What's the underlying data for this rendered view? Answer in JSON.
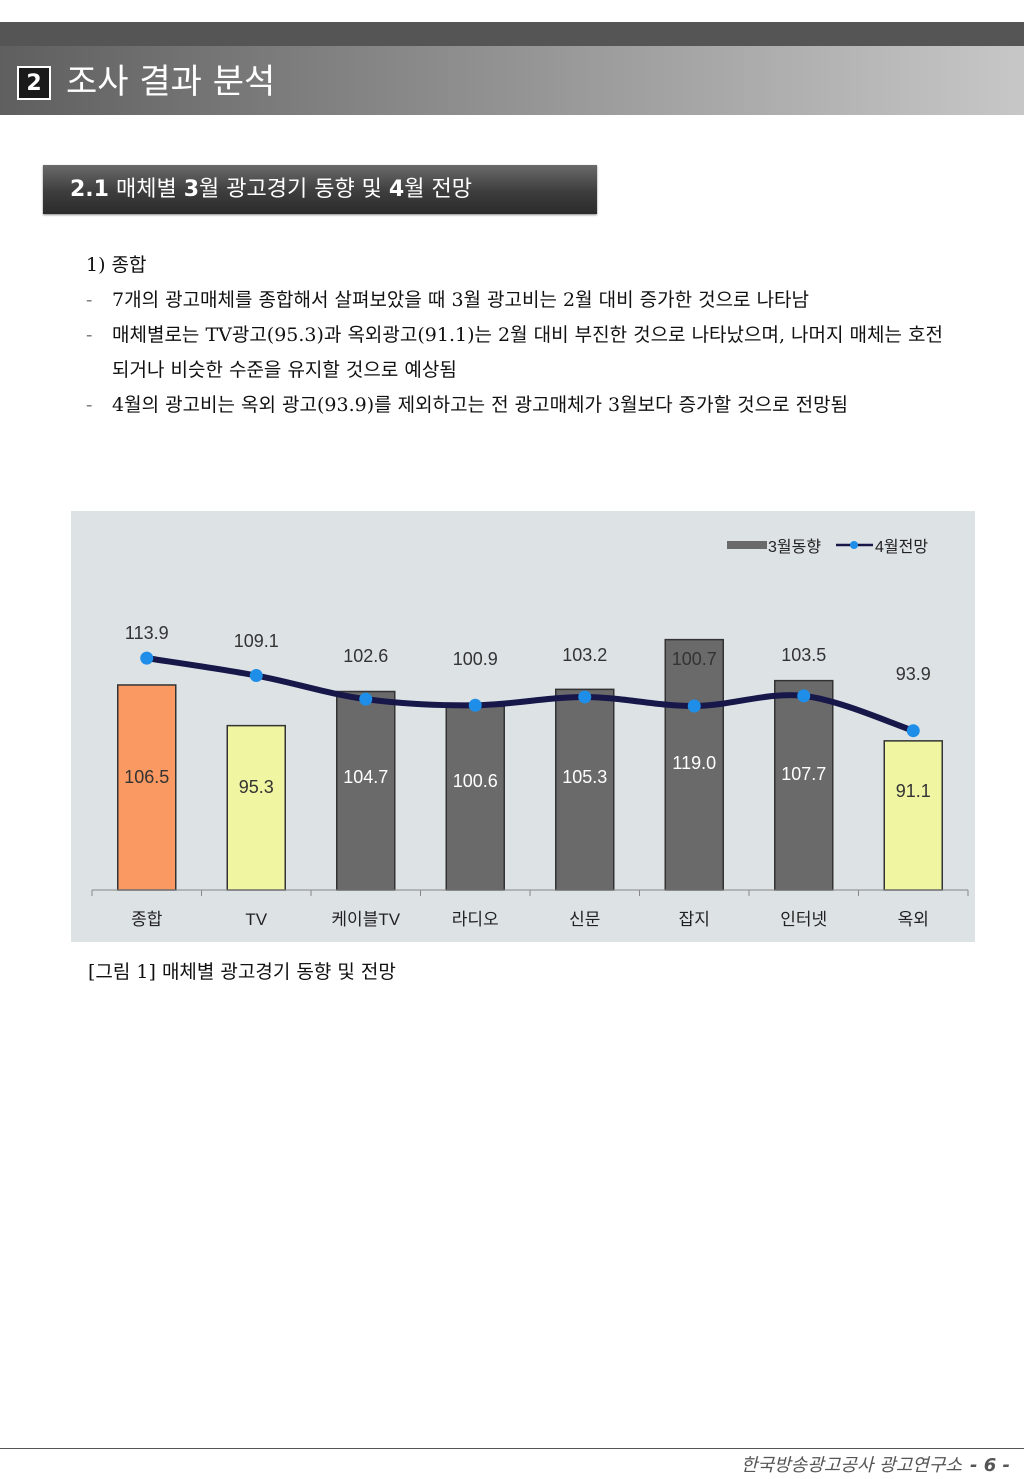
{
  "section": {
    "number": "2",
    "title": "조사 결과 분석"
  },
  "subsection": {
    "parts": [
      {
        "text": "2.1",
        "bold": true
      },
      {
        "text": " 매체별 ",
        "bold": false
      },
      {
        "text": "3",
        "bold": true
      },
      {
        "text": "월 광고경기 동향 및 ",
        "bold": false
      },
      {
        "text": "4",
        "bold": true
      },
      {
        "text": "월 전망",
        "bold": false
      }
    ]
  },
  "body": {
    "heading": "1) 종합",
    "bullet_marker": "-",
    "bullets": [
      "7개의 광고매체를 종합해서 살펴보았을 때 3월 광고비는 2월 대비 증가한 것으로 나타남",
      "매체별로는 TV광고(95.3)과 옥외광고(91.1)는 2월 대비 부진한 것으로 나타났으며, 나머지 매체는 호전되거나 비슷한 수준을 유지할 것으로 예상됨",
      "4월의 광고비는 옥외 광고(93.9)를 제외하고는 전 광고매체가 3월보다 증가할 것으로 전망됨"
    ]
  },
  "chart_data": {
    "type": "bar",
    "categories": [
      "종합",
      "TV",
      "케이블TV",
      "라디오",
      "신문",
      "잡지",
      "인터넷",
      "옥외"
    ],
    "series": [
      {
        "name": "3월동향",
        "type": "bar",
        "values": [
          106.5,
          95.3,
          104.7,
          100.6,
          105.3,
          119.0,
          107.7,
          91.1
        ]
      },
      {
        "name": "4월전망",
        "type": "line",
        "values": [
          113.9,
          109.1,
          102.6,
          100.9,
          103.2,
          100.7,
          103.5,
          93.9
        ]
      }
    ],
    "value_labels": {
      "bars": [
        "106.5",
        "95.3",
        "104.7",
        "100.6",
        "105.3",
        "119.0",
        "107.7",
        "91.1"
      ],
      "line": [
        "113.9",
        "109.1",
        "102.6",
        "100.9",
        "103.2",
        "100.7",
        "103.5",
        "93.9"
      ]
    },
    "legend_position": "top-right",
    "bar_colors": [
      "#fa9a62",
      "#f0f5a2",
      "#6a6a6a",
      "#6a6a6a",
      "#6a6a6a",
      "#6a6a6a",
      "#6a6a6a",
      "#f0f5a2"
    ],
    "line_color": "#17174a",
    "marker_color": "#1e8ee8",
    "background": "#dde2e5",
    "grid": false
  },
  "caption": "[그림 1] 매체별 광고경기 동향 및 전망",
  "footer": {
    "org": "한국방송광고공사 광고연구소",
    "page": "- 6 -"
  }
}
